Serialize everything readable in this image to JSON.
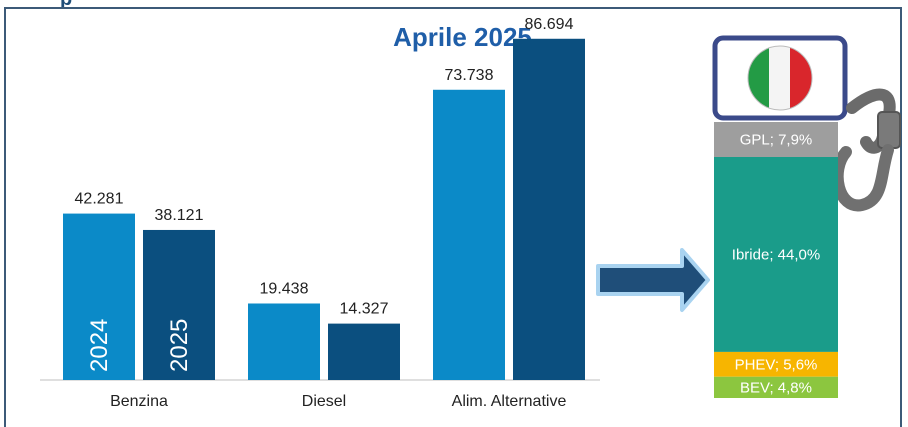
{
  "header": {
    "partial_title": "p"
  },
  "chart_data": {
    "type": "bar",
    "title": "Aprile 2025",
    "categories": [
      "Benzina",
      "Diesel",
      "Alim. Alternative"
    ],
    "series": [
      {
        "name": "2024",
        "values": [
          42281,
          19438,
          73738
        ],
        "labels": [
          "42.281",
          "19.438",
          "73.738"
        ],
        "color": "#0b8ac8"
      },
      {
        "name": "2025",
        "values": [
          38121,
          14327,
          86694
        ],
        "labels": [
          "38.121",
          "14.327",
          "86.694"
        ],
        "color": "#0b4f7f"
      }
    ],
    "ylim": [
      0,
      100000
    ],
    "grid": false,
    "stack": {
      "type": "stacked-bar",
      "segments": [
        {
          "label": "GPL; 7,9%",
          "value": 7.9,
          "color": "#9e9e9e"
        },
        {
          "label": "Ibride; 44,0%",
          "value": 44.0,
          "color": "#1a9c8a"
        },
        {
          "label": "PHEV; 5,6%",
          "value": 5.6,
          "color": "#f7b500"
        },
        {
          "label": "BEV; 4,8%",
          "value": 4.8,
          "color": "#8cc63f"
        }
      ]
    }
  },
  "colors": {
    "frame": "#3c5a78",
    "title": "#1f5ea8",
    "arrow": "#1f4e79",
    "arrow_outline": "#a9d3f0"
  },
  "icons": {
    "flag": "italy-flag-icon",
    "pump": "fuel-pump-nozzle-icon",
    "arrow": "right-arrow-icon"
  }
}
